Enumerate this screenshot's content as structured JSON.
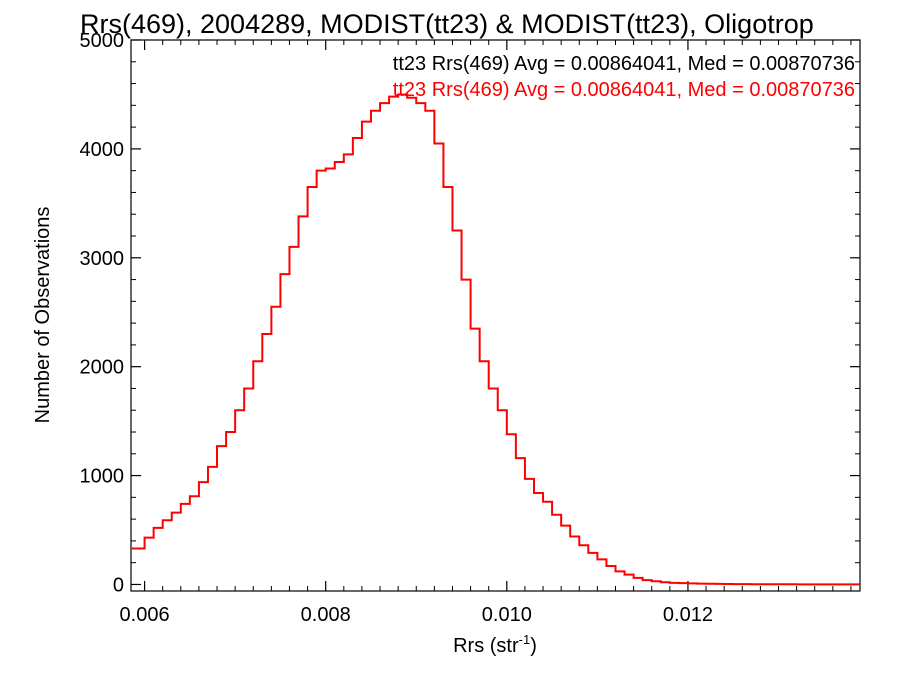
{
  "chart_data": {
    "type": "histogram",
    "title": "Rrs(469), 2004289, MODIST(tt23) & MODIST(tt23), Oligotrop",
    "xlabel": "Rrs (str",
    "xlabel_superscript": "-1",
    "xlabel_suffix": ")",
    "ylabel": "Number of Observations",
    "xlim": [
      0.00585,
      0.0139
    ],
    "ylim": [
      -60,
      5000
    ],
    "x_tick_labels": [
      "0.006",
      "0.008",
      "0.010",
      "0.012"
    ],
    "x_tick_values": [
      0.006,
      0.008,
      0.01,
      0.012
    ],
    "y_tick_labels": [
      "0",
      "1000",
      "2000",
      "3000",
      "4000",
      "5000"
    ],
    "y_tick_values": [
      0,
      1000,
      2000,
      3000,
      4000,
      5000
    ],
    "legend": [
      {
        "text": "tt23 Rrs(469) Avg = 0.00864041, Med = 0.00870736",
        "color": "#000000"
      },
      {
        "text": "tt23 Rrs(469) Avg = 0.00864041, Med = 0.00870736",
        "color": "#ff0000"
      }
    ],
    "legend_position": "top-right",
    "series": [
      {
        "color": "#ff0000",
        "x": [
          0.00585,
          0.006,
          0.0061,
          0.0062,
          0.0063,
          0.0064,
          0.0065,
          0.0066,
          0.0067,
          0.0068,
          0.0069,
          0.007,
          0.0071,
          0.0072,
          0.0073,
          0.0074,
          0.0075,
          0.0076,
          0.0077,
          0.0078,
          0.0079,
          0.008,
          0.0081,
          0.0082,
          0.0083,
          0.0084,
          0.0085,
          0.0086,
          0.0087,
          0.0088,
          0.0089,
          0.009,
          0.0091,
          0.0092,
          0.0093,
          0.0094,
          0.0095,
          0.0096,
          0.0097,
          0.0098,
          0.0099,
          0.01,
          0.0101,
          0.0102,
          0.0103,
          0.0104,
          0.0105,
          0.0106,
          0.0107,
          0.0108,
          0.0109,
          0.011,
          0.0111,
          0.0112,
          0.0113,
          0.0114,
          0.0115,
          0.0116,
          0.0117,
          0.0118,
          0.0119,
          0.012,
          0.0121,
          0.0122,
          0.0123,
          0.0124,
          0.0125,
          0.0126,
          0.0127,
          0.0128,
          0.0129,
          0.013,
          0.0132,
          0.0134,
          0.0136,
          0.0138,
          0.0139
        ],
        "y": [
          330,
          430,
          520,
          590,
          660,
          740,
          810,
          940,
          1080,
          1270,
          1400,
          1600,
          1800,
          2050,
          2300,
          2550,
          2850,
          3100,
          3380,
          3650,
          3800,
          3820,
          3880,
          3950,
          4100,
          4250,
          4350,
          4420,
          4480,
          4500,
          4470,
          4420,
          4350,
          4050,
          3650,
          3250,
          2800,
          2350,
          2050,
          1800,
          1600,
          1380,
          1160,
          970,
          840,
          760,
          640,
          540,
          440,
          360,
          290,
          230,
          170,
          120,
          90,
          60,
          40,
          30,
          20,
          15,
          12,
          10,
          8,
          6,
          5,
          4,
          3,
          3,
          2,
          2,
          2,
          2,
          1,
          1,
          1,
          1,
          1
        ]
      }
    ]
  }
}
